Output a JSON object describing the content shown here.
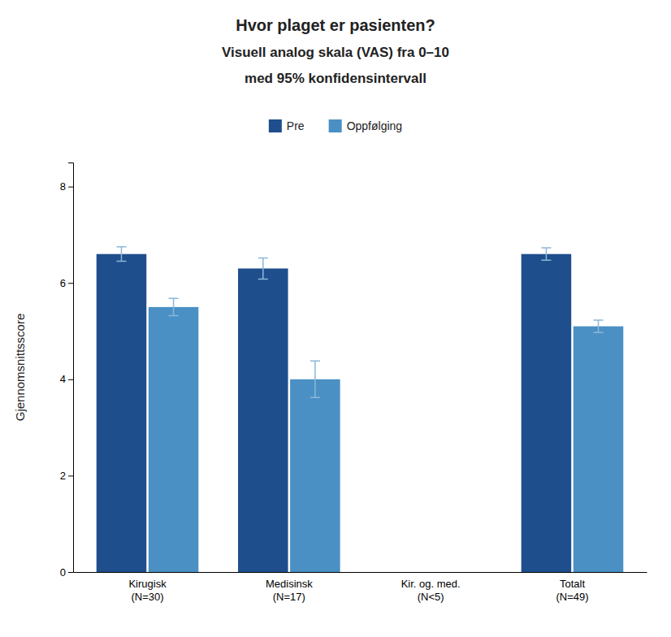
{
  "chart_data": {
    "type": "bar",
    "title": "Hvor plaget er pasienten?",
    "subtitle": [
      "Visuell analog skala (VAS) fra 0–10",
      "med 95% konfidensintervall"
    ],
    "ylabel": "Gjennomsnittsscore",
    "categories": [
      "Kirugisk\n(N=30)",
      "Medisinsk\n(N=17)",
      "Kir. og. med.\n(N<5)",
      "Totalt\n(N=49)"
    ],
    "series": [
      {
        "name": "Pre",
        "color": "#1F4E8C",
        "values": [
          6.6,
          6.3,
          null,
          6.6
        ],
        "errors": [
          0.15,
          0.22,
          null,
          0.13
        ]
      },
      {
        "name": "Oppfølging",
        "color": "#4A90C4",
        "values": [
          5.5,
          4.0,
          null,
          5.1
        ],
        "errors": [
          0.18,
          0.38,
          null,
          0.13
        ]
      }
    ],
    "error_color": "#8AB8D8",
    "ylim": [
      0,
      8.5
    ],
    "yticks": [
      0,
      2,
      4,
      6,
      8
    ],
    "grid": false,
    "legend": "top"
  }
}
